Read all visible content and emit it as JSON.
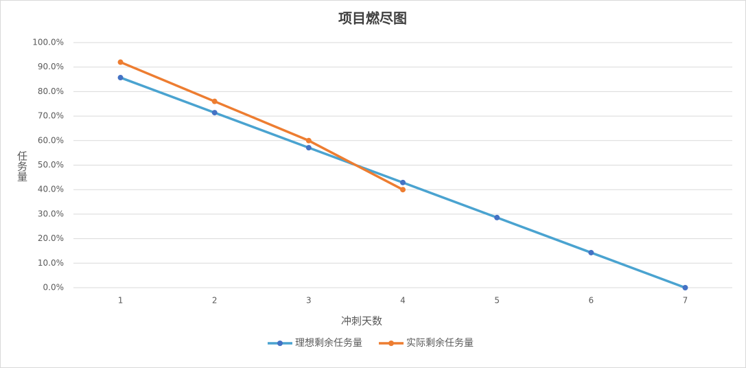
{
  "chart_data": {
    "type": "line",
    "title": "项目燃尽图",
    "x_label": "冲刺天数",
    "y_label": "任务量",
    "categories": [
      "1",
      "2",
      "3",
      "4",
      "5",
      "6",
      "7"
    ],
    "series": [
      {
        "name": "理想剩余任务量",
        "color": "#4aa3d0",
        "marker_color": "#4472c4",
        "values": [
          85.7,
          71.4,
          57.1,
          42.9,
          28.6,
          14.3,
          0
        ]
      },
      {
        "name": "实际剩余任务量",
        "color": "#ed7d31",
        "marker_color": "#ed7d31",
        "values": [
          92,
          76,
          60,
          40,
          null,
          null,
          null
        ]
      }
    ],
    "ylim": [
      0,
      100
    ],
    "yticks": [
      {
        "value": 0,
        "label": "0.0%"
      },
      {
        "value": 10,
        "label": "10.0%"
      },
      {
        "value": 20,
        "label": "20.0%"
      },
      {
        "value": 30,
        "label": "30.0%"
      },
      {
        "value": 40,
        "label": "40.0%"
      },
      {
        "value": 50,
        "label": "50.0%"
      },
      {
        "value": 60,
        "label": "60.0%"
      },
      {
        "value": 70,
        "label": "70.0%"
      },
      {
        "value": 80,
        "label": "80.0%"
      },
      {
        "value": 90,
        "label": "90.0%"
      },
      {
        "value": 100,
        "label": "100.0%"
      }
    ],
    "grid": true,
    "legend": "bottom"
  }
}
